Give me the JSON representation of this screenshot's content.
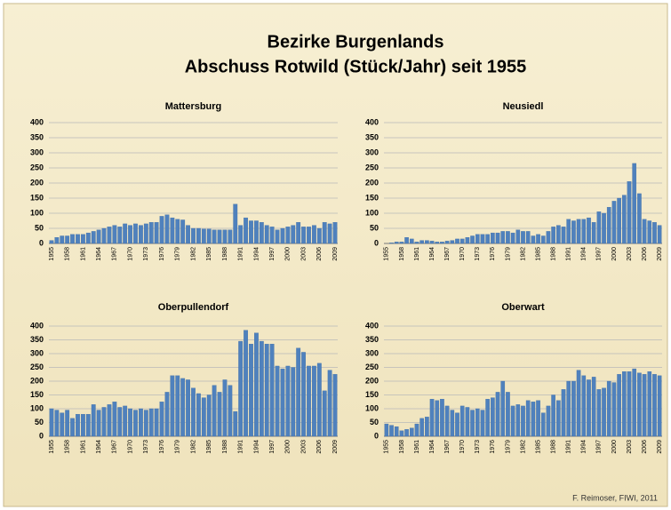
{
  "title": [
    "Bezirke Burgenlands",
    "Abschuss Rotwild (Stück/Jahr) seit 1955"
  ],
  "source": "F. Reimoser, FIWI, 2011",
  "chart_data": [
    {
      "type": "bar",
      "title": "Mattersburg",
      "color": "#4f81bd",
      "grid": true,
      "ylim": [
        0,
        400
      ],
      "yticks": [
        0,
        50,
        100,
        150,
        200,
        250,
        300,
        350,
        400
      ],
      "categories": [
        "1955",
        null,
        null,
        "1958",
        null,
        null,
        "1961",
        null,
        null,
        "1964",
        null,
        null,
        "1967",
        null,
        null,
        "1970",
        null,
        null,
        "1973",
        null,
        null,
        "1976",
        null,
        null,
        "1979",
        null,
        null,
        "1982",
        null,
        null,
        "1985",
        null,
        null,
        "1988",
        null,
        null,
        "1991",
        null,
        null,
        "1994",
        null,
        null,
        "1997",
        null,
        null,
        "2000",
        null,
        null,
        "2003",
        null,
        null,
        "2006",
        null,
        null,
        "2009"
      ],
      "values": [
        10,
        20,
        25,
        25,
        30,
        30,
        30,
        35,
        40,
        45,
        50,
        55,
        60,
        55,
        65,
        60,
        65,
        60,
        65,
        70,
        70,
        90,
        95,
        85,
        80,
        78,
        60,
        50,
        50,
        48,
        48,
        45,
        45,
        45,
        45,
        130,
        60,
        85,
        75,
        75,
        70,
        60,
        55,
        45,
        50,
        55,
        60,
        70,
        55,
        55,
        60,
        50,
        70,
        65,
        70
      ]
    },
    {
      "type": "bar",
      "title": "Neusiedl",
      "color": "#4f81bd",
      "grid": true,
      "ylim": [
        0,
        400
      ],
      "yticks": [
        0,
        50,
        100,
        150,
        200,
        250,
        300,
        350,
        400
      ],
      "categories": [
        "1955",
        null,
        null,
        "1958",
        null,
        null,
        "1961",
        null,
        null,
        "1964",
        null,
        null,
        "1967",
        null,
        null,
        "1970",
        null,
        null,
        "1973",
        null,
        null,
        "1976",
        null,
        null,
        "1979",
        null,
        null,
        "1982",
        null,
        null,
        "1985",
        null,
        null,
        "1988",
        null,
        null,
        "1991",
        null,
        null,
        "1994",
        null,
        null,
        "1997",
        null,
        null,
        "2000",
        null,
        null,
        "2003",
        null,
        null,
        "2006",
        null,
        null,
        "2009"
      ],
      "values": [
        0,
        2,
        5,
        5,
        20,
        15,
        5,
        10,
        10,
        8,
        5,
        5,
        8,
        10,
        15,
        15,
        20,
        25,
        30,
        30,
        30,
        35,
        35,
        40,
        40,
        35,
        45,
        40,
        40,
        25,
        30,
        25,
        40,
        55,
        60,
        55,
        80,
        75,
        80,
        80,
        85,
        70,
        105,
        100,
        120,
        140,
        150,
        160,
        205,
        265,
        165,
        80,
        75,
        70,
        60
      ]
    },
    {
      "type": "bar",
      "title": "Oberpullendorf",
      "color": "#4f81bd",
      "grid": true,
      "ylim": [
        0,
        400
      ],
      "yticks": [
        0,
        50,
        100,
        150,
        200,
        250,
        300,
        350,
        400
      ],
      "categories": [
        "1955",
        null,
        null,
        "1958",
        null,
        null,
        "1961",
        null,
        null,
        "1964",
        null,
        null,
        "1967",
        null,
        null,
        "1970",
        null,
        null,
        "1973",
        null,
        null,
        "1976",
        null,
        null,
        "1979",
        null,
        null,
        "1982",
        null,
        null,
        "1985",
        null,
        null,
        "1988",
        null,
        null,
        "1991",
        null,
        null,
        "1994",
        null,
        null,
        "1997",
        null,
        null,
        "2000",
        null,
        null,
        "2003",
        null,
        null,
        "2006",
        null,
        null,
        "2009"
      ],
      "values": [
        100,
        95,
        85,
        95,
        65,
        80,
        80,
        80,
        115,
        95,
        105,
        115,
        125,
        105,
        110,
        100,
        95,
        100,
        95,
        100,
        100,
        125,
        160,
        220,
        220,
        210,
        205,
        175,
        155,
        140,
        150,
        185,
        160,
        205,
        185,
        90,
        345,
        385,
        335,
        375,
        345,
        335,
        335,
        255,
        245,
        255,
        250,
        320,
        305,
        255,
        255,
        265,
        165,
        240,
        225
      ]
    },
    {
      "type": "bar",
      "title": "Oberwart",
      "color": "#4f81bd",
      "grid": true,
      "ylim": [
        0,
        400
      ],
      "yticks": [
        0,
        50,
        100,
        150,
        200,
        250,
        300,
        350,
        400
      ],
      "categories": [
        "1955",
        null,
        null,
        "1958",
        null,
        null,
        "1961",
        null,
        null,
        "1964",
        null,
        null,
        "1967",
        null,
        null,
        "1970",
        null,
        null,
        "1973",
        null,
        null,
        "1976",
        null,
        null,
        "1979",
        null,
        null,
        "1982",
        null,
        null,
        "1985",
        null,
        null,
        "1988",
        null,
        null,
        "1991",
        null,
        null,
        "1994",
        null,
        null,
        "1997",
        null,
        null,
        "2000",
        null,
        null,
        "2003",
        null,
        null,
        "2006",
        null,
        null,
        "2009"
      ],
      "values": [
        45,
        40,
        35,
        20,
        25,
        30,
        45,
        65,
        70,
        135,
        130,
        135,
        110,
        95,
        85,
        110,
        105,
        95,
        100,
        95,
        135,
        140,
        160,
        200,
        160,
        110,
        115,
        110,
        130,
        125,
        130,
        85,
        110,
        150,
        130,
        170,
        200,
        200,
        240,
        220,
        205,
        215,
        170,
        175,
        200,
        195,
        225,
        235,
        235,
        245,
        230,
        225,
        235,
        225,
        220
      ]
    }
  ]
}
